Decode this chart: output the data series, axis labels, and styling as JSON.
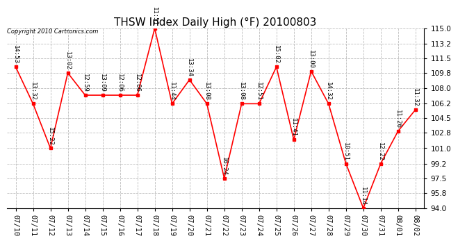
{
  "title": "THSW Index Daily High (°F) 20100803",
  "copyright": "Copyright 2010 Cartronics.com",
  "dates": [
    "07/10",
    "07/11",
    "07/12",
    "07/13",
    "07/14",
    "07/15",
    "07/16",
    "07/17",
    "07/18",
    "07/19",
    "07/20",
    "07/21",
    "07/22",
    "07/23",
    "07/24",
    "07/25",
    "07/26",
    "07/27",
    "07/28",
    "07/29",
    "07/30",
    "07/31",
    "08/01",
    "08/02"
  ],
  "values": [
    110.5,
    106.2,
    101.0,
    109.8,
    107.2,
    107.2,
    107.2,
    107.2,
    115.0,
    106.2,
    109.0,
    106.2,
    97.5,
    106.2,
    106.2,
    110.5,
    102.0,
    110.0,
    106.2,
    99.2,
    94.0,
    99.2,
    103.0,
    105.5
  ],
  "times": [
    "14:53",
    "13:32",
    "15:22",
    "13:02",
    "12:59",
    "13:09",
    "12:06",
    "12:06",
    "11:51",
    "11:44",
    "13:34",
    "13:08",
    "16:24",
    "13:08",
    "12:51",
    "15:02",
    "11:41",
    "13:00",
    "14:32",
    "10:51",
    "11:14",
    "12:22",
    "11:26",
    "11:32"
  ],
  "ylim": [
    94.0,
    115.0
  ],
  "yticks": [
    94.0,
    95.8,
    97.5,
    99.2,
    101.0,
    102.8,
    104.5,
    106.2,
    108.0,
    109.8,
    111.5,
    113.2,
    115.0
  ],
  "line_color": "#ff0000",
  "marker_color": "#ff0000",
  "background_color": "#ffffff",
  "grid_color": "#bbbbbb",
  "title_fontsize": 11,
  "label_fontsize": 6.5,
  "tick_fontsize": 7.5
}
